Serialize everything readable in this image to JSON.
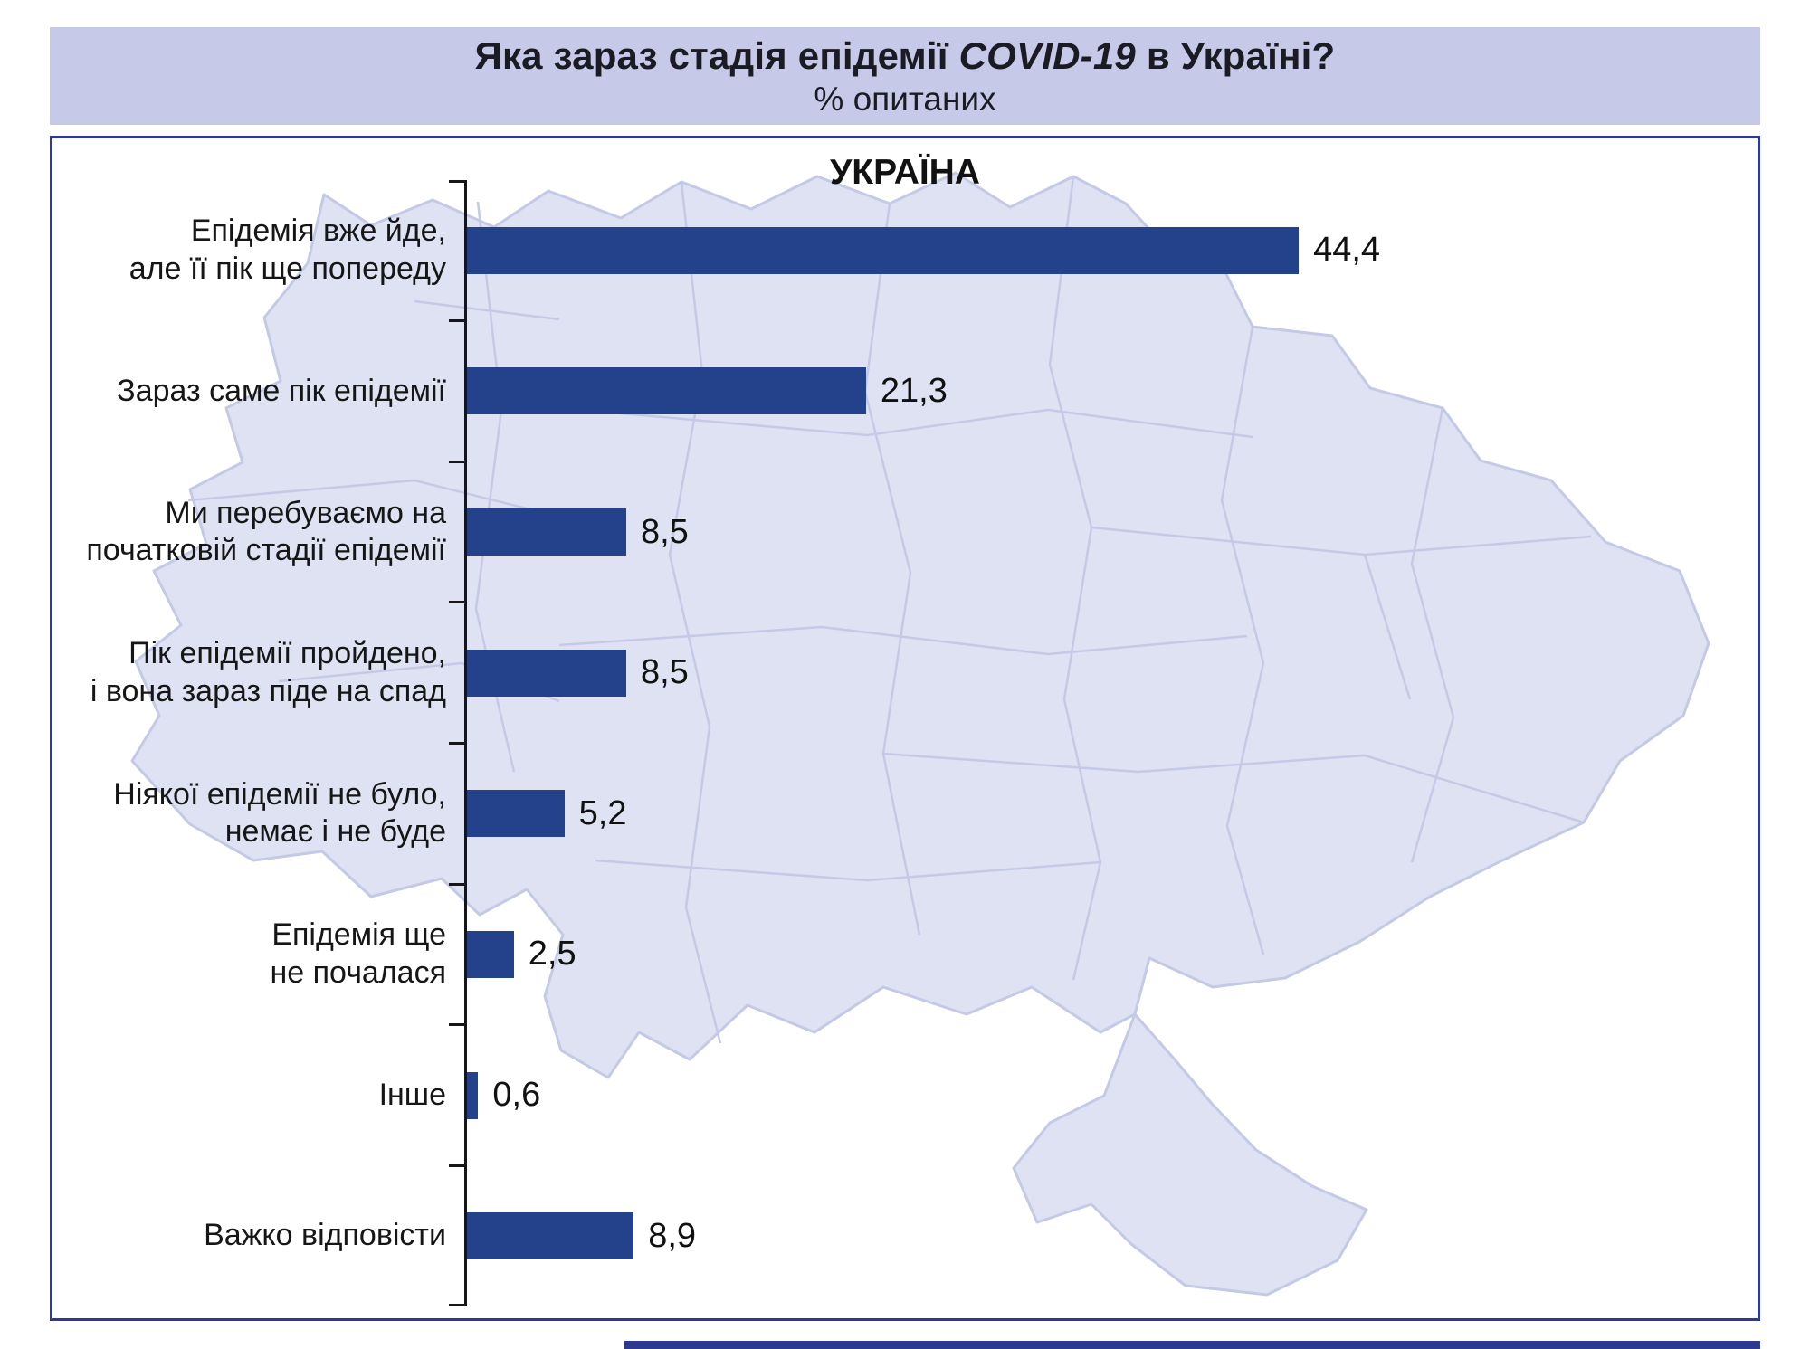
{
  "header": {
    "title_prefix": "Яка зараз стадія епідемії ",
    "title_emphasis": "COVID-19",
    "title_suffix": " в Україні?",
    "subtitle": "% опитаних"
  },
  "chart_data": {
    "type": "bar",
    "orientation": "horizontal",
    "region_label": "УКРАЇНА",
    "title": "Яка зараз стадія епідемії COVID-19 в Україні?",
    "subtitle": "% опитаних",
    "unit": "%",
    "xlim": [
      0,
      47
    ],
    "grid": false,
    "legend": "none",
    "categories": [
      "Епідемія вже йде,\nале її пік ще попереду",
      "Зараз саме пік епідемії",
      "Ми перебуваємо на\nпочатковій стадії епідемії",
      "Пік епідемії пройдено,\nі вона зараз піде на спад",
      "Ніякої епідемії не було,\nнемає і не буде",
      "Епідемія ще\nне почалася",
      "Інше",
      "Важко відповісти"
    ],
    "values": [
      44.4,
      21.3,
      8.5,
      8.5,
      5.2,
      2.5,
      0.6,
      8.9
    ],
    "value_labels": [
      "44,4",
      "21,3",
      "8,5",
      "8,5",
      "5,2",
      "2,5",
      "0,6",
      "8,9"
    ]
  },
  "colors": {
    "band": "#c6c9e8",
    "border": "#2d3a8f",
    "bar": "#24418c",
    "axis": "#15151a",
    "text": "#1b1b24",
    "map_fill": "#dfe2f2",
    "map_stroke": "#c4c9e6"
  }
}
